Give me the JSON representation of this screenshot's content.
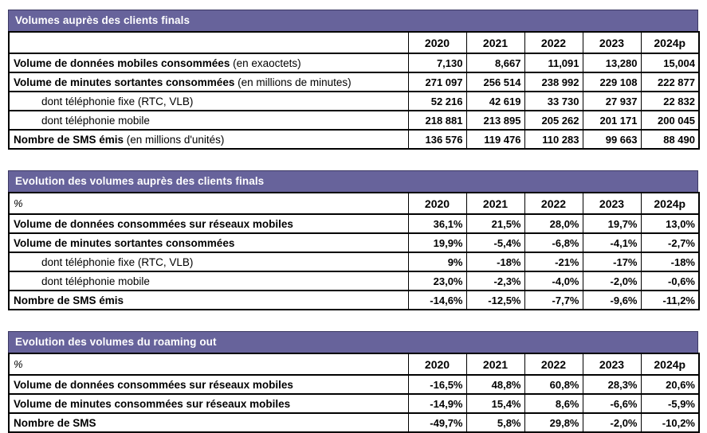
{
  "accent_color": "#67639B",
  "border_color": "#000000",
  "tables": [
    {
      "title": "Volumes auprès des clients finals",
      "unit_label": "",
      "columns": [
        "2020",
        "2021",
        "2022",
        "2023",
        "2024p"
      ],
      "rows": [
        {
          "label": "Volume de données mobiles consommées",
          "suffix": " (en exaoctets)",
          "indent": false,
          "bold": true,
          "values": [
            "7,130",
            "8,667",
            "11,091",
            "13,280",
            "15,004"
          ]
        },
        {
          "label": "Volume de minutes sortantes consommées",
          "suffix": " (en millions de minutes)",
          "indent": false,
          "bold": true,
          "values": [
            "271 097",
            "256 514",
            "238 992",
            "229 108",
            "222 877"
          ]
        },
        {
          "label": "dont téléphonie fixe (RTC, VLB)",
          "suffix": "",
          "indent": true,
          "bold": false,
          "values": [
            "52 216",
            "42 619",
            "33 730",
            "27 937",
            "22 832"
          ]
        },
        {
          "label": "dont téléphonie mobile",
          "suffix": "",
          "indent": true,
          "bold": false,
          "values": [
            "218 881",
            "213 895",
            "205 262",
            "201 171",
            "200 045"
          ]
        },
        {
          "label": "Nombre de SMS émis",
          "suffix": " (en millions d'unités)",
          "indent": false,
          "bold": true,
          "values": [
            "136 576",
            "119 476",
            "110 283",
            "99 663",
            "88 490"
          ]
        }
      ]
    },
    {
      "title": "Evolution des volumes auprès des clients finals",
      "unit_label": "%",
      "columns": [
        "2020",
        "2021",
        "2022",
        "2023",
        "2024p"
      ],
      "rows": [
        {
          "label": "Volume de données consommées sur réseaux mobiles",
          "suffix": "",
          "indent": false,
          "bold": true,
          "values": [
            "36,1%",
            "21,5%",
            "28,0%",
            "19,7%",
            "13,0%"
          ]
        },
        {
          "label": "Volume de minutes sortantes consommées",
          "suffix": "",
          "indent": false,
          "bold": true,
          "values": [
            "19,9%",
            "-5,4%",
            "-6,8%",
            "-4,1%",
            "-2,7%"
          ]
        },
        {
          "label": "dont téléphonie fixe (RTC, VLB)",
          "suffix": "",
          "indent": true,
          "bold": false,
          "values": [
            "9%",
            "-18%",
            "-21%",
            "-17%",
            "-18%"
          ]
        },
        {
          "label": "dont téléphonie mobile",
          "suffix": "",
          "indent": true,
          "bold": false,
          "values": [
            "23,0%",
            "-2,3%",
            "-4,0%",
            "-2,0%",
            "-0,6%"
          ]
        },
        {
          "label": "Nombre de SMS émis",
          "suffix": "",
          "indent": false,
          "bold": true,
          "values": [
            "-14,6%",
            "-12,5%",
            "-7,7%",
            "-9,6%",
            "-11,2%"
          ]
        }
      ]
    },
    {
      "title": "Evolution des volumes du roaming out",
      "unit_label": "%",
      "columns": [
        "2020",
        "2021",
        "2022",
        "2023",
        "2024p"
      ],
      "rows": [
        {
          "label": "Volume de données consommées sur réseaux mobiles",
          "suffix": "",
          "indent": false,
          "bold": true,
          "values": [
            "-16,5%",
            "48,8%",
            "60,8%",
            "28,3%",
            "20,6%"
          ]
        },
        {
          "label": "Volume de minutes consommées sur réseaux mobiles",
          "suffix": "",
          "indent": false,
          "bold": true,
          "values": [
            "-14,9%",
            "15,4%",
            "8,6%",
            "-6,6%",
            "-5,9%"
          ]
        },
        {
          "label": "Nombre de SMS",
          "suffix": "",
          "indent": false,
          "bold": true,
          "values": [
            "-49,7%",
            "5,8%",
            "29,8%",
            "-2,0%",
            "-10,2%"
          ]
        }
      ]
    }
  ]
}
